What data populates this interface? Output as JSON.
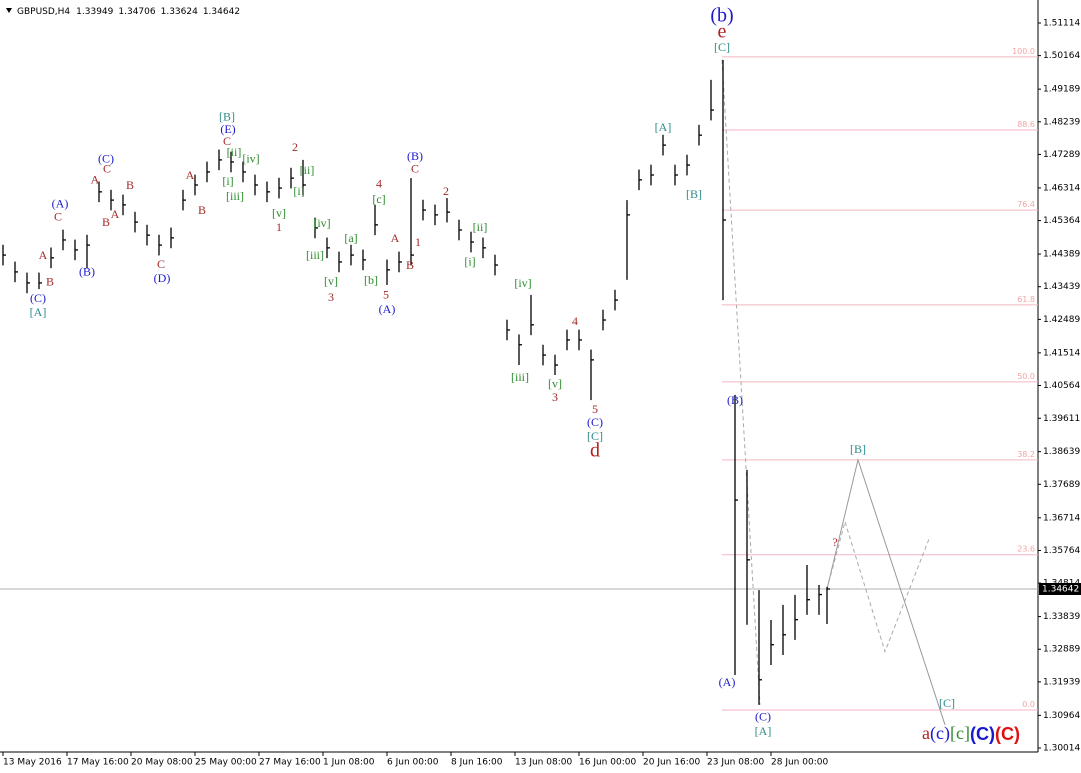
{
  "chart_data": {
    "type": "ohlc",
    "symbol": "GBPUSD,H4",
    "header_values": [
      1.33949,
      1.34706,
      1.33624,
      1.34642
    ],
    "color": "#000000",
    "xlim": [
      -0.75,
      258.75
    ],
    "ylim": [
      1.29898,
      1.51638
    ],
    "xticks": [
      {
        "value": 0,
        "label": "13 May 2016"
      },
      {
        "value": 16,
        "label": "17 May 16:00"
      },
      {
        "value": 32,
        "label": "20 May 08:00"
      },
      {
        "value": 48,
        "label": "25 May 00:00"
      },
      {
        "value": 64,
        "label": "27 May 16:00"
      },
      {
        "value": 80,
        "label": "1 Jun 08:00"
      },
      {
        "value": 96,
        "label": "6 Jun 00:00"
      },
      {
        "value": 112,
        "label": "8 Jun 16:00"
      },
      {
        "value": 128,
        "label": "13 Jun 08:00"
      },
      {
        "value": 144,
        "label": "16 Jun 00:00"
      },
      {
        "value": 160,
        "label": "20 Jun 16:00"
      },
      {
        "value": 176,
        "label": "23 Jun 08:00"
      },
      {
        "value": 192,
        "label": "28 Jun 00:00"
      }
    ],
    "yticks": [
      1.51114,
      1.50164,
      1.49189,
      1.48239,
      1.47289,
      1.46314,
      1.45364,
      1.44389,
      1.43439,
      1.42489,
      1.41514,
      1.40564,
      1.39611,
      1.38639,
      1.37689,
      1.36714,
      1.35764,
      1.34814,
      1.33839,
      1.32889,
      1.31939,
      1.30964,
      1.30014
    ],
    "x": [
      0,
      3,
      6,
      9,
      12,
      15,
      18,
      21,
      24,
      27,
      30,
      33,
      36,
      39,
      42,
      45,
      48,
      51,
      54,
      57,
      60,
      63,
      66,
      69,
      72,
      75,
      78,
      81,
      84,
      87,
      90,
      93,
      96,
      99,
      102,
      105,
      108,
      111,
      114,
      117,
      120,
      123,
      126,
      129,
      132,
      135,
      138,
      141,
      144,
      147,
      150,
      153,
      156,
      159,
      162,
      165,
      168,
      171,
      174,
      177,
      180,
      183,
      186,
      189,
      192,
      195,
      198,
      201,
      204,
      206
    ],
    "high": [
      1.4466,
      1.4417,
      1.4385,
      1.4385,
      1.4458,
      1.451,
      1.4481,
      1.4495,
      1.465,
      1.4626,
      1.4612,
      1.4562,
      1.4524,
      1.4495,
      1.4516,
      1.4626,
      1.467,
      1.4708,
      1.4743,
      1.4737,
      1.4708,
      1.467,
      1.465,
      1.4661,
      1.469,
      1.4713,
      1.4545,
      1.4487,
      1.4446,
      1.4466,
      1.4452,
      1.4582,
      1.4423,
      1.4446,
      1.466,
      1.4597,
      1.4583,
      1.4602,
      1.4539,
      1.4504,
      1.4487,
      1.4437,
      1.4248,
      1.4205,
      1.432,
      1.4175,
      1.4146,
      1.4219,
      1.4219,
      1.4161,
      1.4277,
      1.4335,
      1.4596,
      1.4685,
      1.4699,
      1.4786,
      1.4699,
      1.4728,
      1.4815,
      1.4946,
      1.5004,
      1.4029,
      1.3811,
      1.3461,
      1.3374,
      1.3418,
      1.3447,
      1.3534,
      1.3476,
      1.34706
    ],
    "low": [
      1.4406,
      1.4357,
      1.4325,
      1.4337,
      1.4398,
      1.445,
      1.4421,
      1.4398,
      1.459,
      1.4566,
      1.4552,
      1.4502,
      1.4464,
      1.4435,
      1.4456,
      1.4566,
      1.461,
      1.4648,
      1.4683,
      1.4677,
      1.4648,
      1.461,
      1.459,
      1.4601,
      1.463,
      1.461,
      1.4485,
      1.4427,
      1.4386,
      1.4406,
      1.4392,
      1.4494,
      1.4349,
      1.4386,
      1.4406,
      1.4537,
      1.4523,
      1.4531,
      1.4479,
      1.4444,
      1.4427,
      1.4377,
      1.4188,
      1.4116,
      1.4203,
      1.4115,
      1.4087,
      1.4159,
      1.4159,
      1.4014,
      1.4217,
      1.4275,
      1.4364,
      1.4625,
      1.4639,
      1.4726,
      1.4639,
      1.4668,
      1.4755,
      1.4828,
      1.4305,
      1.3214,
      1.336,
      1.3127,
      1.3243,
      1.3272,
      1.3316,
      1.3389,
      1.3389,
      1.33624
    ],
    "close": [
      1.4436,
      1.4387,
      1.4355,
      1.4355,
      1.4428,
      1.448,
      1.4451,
      1.4465,
      1.462,
      1.4596,
      1.4582,
      1.4532,
      1.4494,
      1.4465,
      1.4486,
      1.4596,
      1.464,
      1.4678,
      1.4713,
      1.4707,
      1.4678,
      1.464,
      1.462,
      1.4631,
      1.466,
      1.464,
      1.4515,
      1.4457,
      1.4416,
      1.4436,
      1.4422,
      1.4524,
      1.4393,
      1.4416,
      1.4436,
      1.4567,
      1.4553,
      1.4561,
      1.4509,
      1.4474,
      1.4457,
      1.4407,
      1.4218,
      1.4175,
      1.4233,
      1.4145,
      1.4116,
      1.4189,
      1.4189,
      1.4131,
      1.4247,
      1.4305,
      1.4553,
      1.4655,
      1.4669,
      1.4756,
      1.4669,
      1.4698,
      1.4785,
      1.4858,
      1.4538,
      1.3723,
      1.3549,
      1.32,
      1.3302,
      1.3331,
      1.3375,
      1.3433,
      1.3448,
      1.34642
    ],
    "current_price": 1.34642,
    "fib_start": 179.75,
    "fib_levels": [
      {
        "price": 1.5013,
        "label": "100.0"
      },
      {
        "price": 1.48,
        "label": "88.6"
      },
      {
        "price": 1.4567,
        "label": "76.4"
      },
      {
        "price": 1.4291,
        "label": "61.8"
      },
      {
        "price": 1.4067,
        "label": "50.0"
      },
      {
        "price": 1.384,
        "label": "38.2"
      },
      {
        "price": 1.3564,
        "label": "23.6"
      },
      {
        "price": 1.3112,
        "label": "0.0"
      }
    ],
    "fib_diagonal": {
      "x": [
        179.75,
        189.25
      ],
      "y": [
        1.5004,
        1.3127
      ]
    },
    "forecast": {
      "x": [
        206,
        213.75,
        235.5
      ],
      "y": [
        1.34642,
        1.384,
        1.3069
      ]
    },
    "forecast_alt": {
      "x": [
        206,
        210.5,
        220.5,
        231.75
      ],
      "y": [
        1.34642,
        1.366,
        1.3282,
        1.3617
      ]
    },
    "annotations": [
      {
        "text": "(C)",
        "x": 8.75,
        "y": 1.4308,
        "color": "#1a1acd"
      },
      {
        "text": "[A]",
        "x": 8.75,
        "y": 1.4267,
        "color": "#2e8b8b"
      },
      {
        "text": "B",
        "x": 11.75,
        "y": 1.4355,
        "color": "#a52a2a"
      },
      {
        "text": "A",
        "x": 10,
        "y": 1.4433,
        "color": "#a52a2a"
      },
      {
        "text": "C",
        "x": 13.75,
        "y": 1.4544,
        "color": "#a52a2a"
      },
      {
        "text": "(A)",
        "x": 14.25,
        "y": 1.4582,
        "color": "#1a1acd"
      },
      {
        "text": "(B)",
        "x": 21,
        "y": 1.4384,
        "color": "#1a1acd"
      },
      {
        "text": "A",
        "x": 23,
        "y": 1.4652,
        "color": "#a52a2a"
      },
      {
        "text": "(C)",
        "x": 25.75,
        "y": 1.4713,
        "color": "#1a1acd"
      },
      {
        "text": "C",
        "x": 26,
        "y": 1.4684,
        "color": "#a52a2a"
      },
      {
        "text": "B",
        "x": 25.75,
        "y": 1.4529,
        "color": "#a52a2a"
      },
      {
        "text": "A",
        "x": 28,
        "y": 1.4552,
        "color": "#a52a2a"
      },
      {
        "text": "B",
        "x": 31.75,
        "y": 1.4637,
        "color": "#a52a2a"
      },
      {
        "text": "C",
        "x": 39.5,
        "y": 1.4407,
        "color": "#a52a2a"
      },
      {
        "text": "(D)",
        "x": 39.75,
        "y": 1.4366,
        "color": "#1a1acd"
      },
      {
        "text": "A",
        "x": 46.75,
        "y": 1.4666,
        "color": "#a52a2a"
      },
      {
        "text": "B",
        "x": 49.75,
        "y": 1.4564,
        "color": "#a52a2a"
      },
      {
        "text": "[B]",
        "x": 56,
        "y": 1.4835,
        "color": "#2e8b8b"
      },
      {
        "text": "(E)",
        "x": 56.25,
        "y": 1.48,
        "color": "#1a1acd"
      },
      {
        "text": "C",
        "x": 56,
        "y": 1.4765,
        "color": "#a52a2a"
      },
      {
        "text": "[ii]",
        "x": 57.75,
        "y": 1.4733,
        "color": "#2e8b2e"
      },
      {
        "text": "[iv]",
        "x": 62,
        "y": 1.4713,
        "color": "#2e8b2e"
      },
      {
        "text": "[i]",
        "x": 56.25,
        "y": 1.4648,
        "color": "#2e8b2e"
      },
      {
        "text": "[iii]",
        "x": 58,
        "y": 1.4605,
        "color": "#2e8b2e"
      },
      {
        "text": "2",
        "x": 73,
        "y": 1.4747,
        "color": "#a52a2a"
      },
      {
        "text": "[ii]",
        "x": 76,
        "y": 1.468,
        "color": "#2e8b2e"
      },
      {
        "text": "[i]",
        "x": 74,
        "y": 1.4619,
        "color": "#2e8b2e"
      },
      {
        "text": "[v]",
        "x": 69,
        "y": 1.4555,
        "color": "#2e8b2e"
      },
      {
        "text": "1",
        "x": 69,
        "y": 1.4514,
        "color": "#a52a2a"
      },
      {
        "text": "[iv]",
        "x": 79.75,
        "y": 1.4526,
        "color": "#2e8b2e"
      },
      {
        "text": "[iii]",
        "x": 78,
        "y": 1.4433,
        "color": "#2e8b2e"
      },
      {
        "text": "[v]",
        "x": 82,
        "y": 1.4357,
        "color": "#2e8b2e"
      },
      {
        "text": "3",
        "x": 82,
        "y": 1.4311,
        "color": "#a52a2a"
      },
      {
        "text": "[a]",
        "x": 87,
        "y": 1.4482,
        "color": "#2e8b2e"
      },
      {
        "text": "[b]",
        "x": 92,
        "y": 1.436,
        "color": "#2e8b2e"
      },
      {
        "text": "4",
        "x": 94,
        "y": 1.464,
        "color": "#a52a2a"
      },
      {
        "text": "[c]",
        "x": 94,
        "y": 1.4596,
        "color": "#2e8b2e"
      },
      {
        "text": "5",
        "x": 95.75,
        "y": 1.4317,
        "color": "#a52a2a"
      },
      {
        "text": "(A)",
        "x": 96,
        "y": 1.4276,
        "color": "#1a1acd"
      },
      {
        "text": "A",
        "x": 98,
        "y": 1.4482,
        "color": "#a52a2a"
      },
      {
        "text": "1",
        "x": 103.75,
        "y": 1.4471,
        "color": "#a52a2a"
      },
      {
        "text": "B",
        "x": 101.75,
        "y": 1.4404,
        "color": "#a52a2a"
      },
      {
        "text": "(B)",
        "x": 103,
        "y": 1.4721,
        "color": "#1a1acd"
      },
      {
        "text": "C",
        "x": 103,
        "y": 1.4684,
        "color": "#a52a2a"
      },
      {
        "text": "2",
        "x": 110.75,
        "y": 1.4619,
        "color": "#a52a2a"
      },
      {
        "text": "[ii]",
        "x": 119.25,
        "y": 1.4514,
        "color": "#2e8b2e"
      },
      {
        "text": "[i]",
        "x": 116.75,
        "y": 1.4413,
        "color": "#2e8b2e"
      },
      {
        "text": "[iv]",
        "x": 130,
        "y": 1.4351,
        "color": "#2e8b2e"
      },
      {
        "text": "[iii]",
        "x": 129.25,
        "y": 1.4078,
        "color": "#2e8b2e"
      },
      {
        "text": "[v]",
        "x": 138,
        "y": 1.4058,
        "color": "#2e8b2e"
      },
      {
        "text": "3",
        "x": 138,
        "y": 1.402,
        "color": "#a52a2a"
      },
      {
        "text": "4",
        "x": 143,
        "y": 1.4241,
        "color": "#a52a2a"
      },
      {
        "text": "5",
        "x": 148,
        "y": 1.3985,
        "color": "#a52a2a"
      },
      {
        "text": "(C)",
        "x": 148,
        "y": 1.3947,
        "color": "#1a1acd"
      },
      {
        "text": "[C]",
        "x": 148,
        "y": 1.3906,
        "color": "#2e8b8b"
      },
      {
        "text": "d",
        "x": 148,
        "y": 1.3863,
        "color": "#b22222",
        "size": "large"
      },
      {
        "text": "(b)",
        "x": 179.75,
        "y": 1.5129,
        "color": "#1a1acd",
        "size": "large"
      },
      {
        "text": "e",
        "x": 179.75,
        "y": 1.5082,
        "color": "#b22222",
        "size": "large"
      },
      {
        "text": "[C]",
        "x": 179.75,
        "y": 1.5038,
        "color": "#2e8b8b"
      },
      {
        "text": "[A]",
        "x": 165,
        "y": 1.4805,
        "color": "#2e8b8b"
      },
      {
        "text": "[B]",
        "x": 172.75,
        "y": 1.461,
        "color": "#2e8b8b"
      },
      {
        "text": "(B)",
        "x": 183,
        "y": 1.4011,
        "color": "#1a1acd"
      },
      {
        "text": "(A)",
        "x": 181,
        "y": 1.319,
        "color": "#1a1acd"
      },
      {
        "text": "(C)",
        "x": 190,
        "y": 1.3089,
        "color": "#1a1acd"
      },
      {
        "text": "[A]",
        "x": 190,
        "y": 1.3048,
        "color": "#2e8b8b"
      },
      {
        "text": "?",
        "x": 208,
        "y": 1.3598,
        "color": "#b22222"
      },
      {
        "text": "[B]",
        "x": 213.75,
        "y": 1.3868,
        "color": "#2e8b8b"
      },
      {
        "text": "[C]",
        "x": 236,
        "y": 1.3129,
        "color": "#2e8b8b"
      }
    ],
    "degree_labels": [
      {
        "text": "a",
        "color": "#b22222"
      },
      {
        "text": "(c)",
        "color": "#1a1acd"
      },
      {
        "text": "[c]",
        "color": "#2e8b2e"
      },
      {
        "text": "(C)",
        "color": "#1a1acd",
        "bold": true
      },
      {
        "text": "(C)",
        "color": "#e01010",
        "bold": true
      }
    ]
  }
}
